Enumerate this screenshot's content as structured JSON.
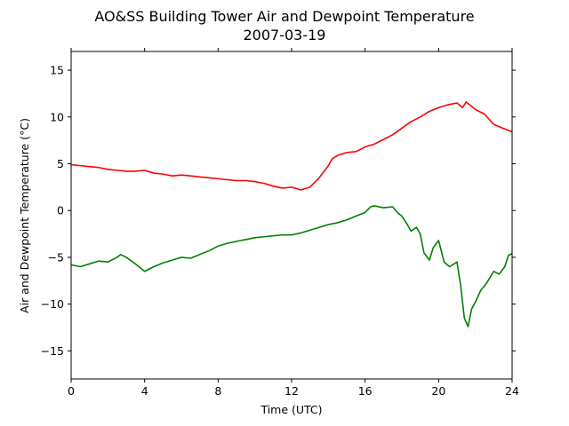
{
  "chart_data": {
    "type": "line",
    "title": "AO&SS Building Tower Air and Dewpoint Temperature",
    "subtitle": "2007-03-19",
    "xlabel": "Time (UTC)",
    "ylabel": "Air and Dewpoint Temperature (°C)",
    "xlim": [
      0,
      24
    ],
    "ylim": [
      -18,
      17
    ],
    "xticks": [
      0,
      4,
      8,
      12,
      16,
      20,
      24
    ],
    "yticks": [
      -15,
      -10,
      -5,
      0,
      5,
      10,
      15
    ],
    "xtick_labels": [
      "0",
      "4",
      "8",
      "12",
      "16",
      "20",
      "24"
    ],
    "ytick_labels": [
      "−15",
      "−10",
      "−5",
      "0",
      "5",
      "10",
      "15"
    ],
    "grid": false,
    "legend": "none",
    "series": [
      {
        "color": "#ff0000",
        "x": [
          0.0,
          0.5,
          1.0,
          1.5,
          2.0,
          2.5,
          3.0,
          3.5,
          4.0,
          4.5,
          5.0,
          5.5,
          6.0,
          6.5,
          7.0,
          7.5,
          8.0,
          8.5,
          9.0,
          9.5,
          10.0,
          10.5,
          11.0,
          11.5,
          12.0,
          12.5,
          13.0,
          13.5,
          14.0,
          14.2,
          14.5,
          15.0,
          15.5,
          16.0,
          16.5,
          17.0,
          17.5,
          18.0,
          18.5,
          19.0,
          19.5,
          20.0,
          20.5,
          21.0,
          21.3,
          21.5,
          22.0,
          22.5,
          23.0,
          23.5,
          24.0
        ],
        "y": [
          4.9,
          4.8,
          4.7,
          4.6,
          4.4,
          4.3,
          4.2,
          4.2,
          4.3,
          4.0,
          3.9,
          3.7,
          3.8,
          3.7,
          3.6,
          3.5,
          3.4,
          3.3,
          3.2,
          3.2,
          3.1,
          2.9,
          2.6,
          2.4,
          2.5,
          2.2,
          2.5,
          3.5,
          4.8,
          5.5,
          5.9,
          6.2,
          6.3,
          6.8,
          7.1,
          7.6,
          8.1,
          8.8,
          9.5,
          10.0,
          10.6,
          11.0,
          11.3,
          11.5,
          11.0,
          11.6,
          10.8,
          10.3,
          9.2,
          8.8,
          8.4
        ]
      },
      {
        "color": "#008000",
        "x": [
          0.0,
          0.5,
          1.0,
          1.5,
          2.0,
          2.5,
          2.7,
          3.0,
          3.5,
          4.0,
          4.5,
          5.0,
          5.5,
          6.0,
          6.5,
          7.0,
          7.5,
          8.0,
          8.5,
          9.0,
          9.5,
          10.0,
          10.5,
          11.0,
          11.5,
          12.0,
          12.5,
          13.0,
          13.5,
          14.0,
          14.5,
          15.0,
          15.5,
          16.0,
          16.3,
          16.5,
          17.0,
          17.5,
          17.8,
          18.0,
          18.3,
          18.5,
          18.8,
          19.0,
          19.2,
          19.5,
          19.7,
          20.0,
          20.3,
          20.6,
          21.0,
          21.2,
          21.4,
          21.6,
          21.8,
          22.0,
          22.3,
          22.6,
          23.0,
          23.3,
          23.6,
          23.8,
          24.0
        ],
        "y": [
          -5.8,
          -6.0,
          -5.7,
          -5.4,
          -5.5,
          -5.0,
          -4.7,
          -5.0,
          -5.7,
          -6.5,
          -6.0,
          -5.6,
          -5.3,
          -5.0,
          -5.1,
          -4.7,
          -4.3,
          -3.8,
          -3.5,
          -3.3,
          -3.1,
          -2.9,
          -2.8,
          -2.7,
          -2.6,
          -2.6,
          -2.4,
          -2.1,
          -1.8,
          -1.5,
          -1.3,
          -1.0,
          -0.6,
          -0.2,
          0.4,
          0.5,
          0.3,
          0.4,
          -0.3,
          -0.6,
          -1.5,
          -2.2,
          -1.8,
          -2.5,
          -4.5,
          -5.3,
          -4.0,
          -3.2,
          -5.5,
          -6.0,
          -5.5,
          -8.0,
          -11.5,
          -12.4,
          -10.5,
          -9.8,
          -8.5,
          -7.8,
          -6.5,
          -6.8,
          -6.0,
          -4.8,
          -4.6
        ]
      }
    ]
  }
}
